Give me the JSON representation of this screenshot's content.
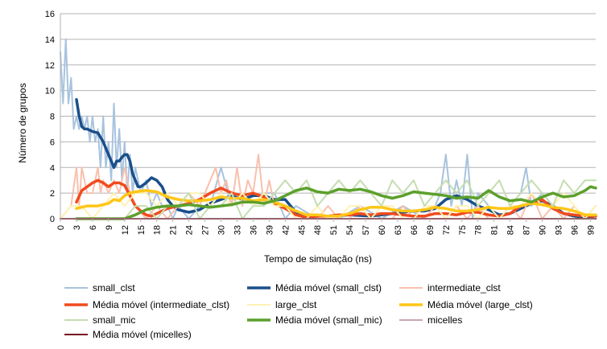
{
  "chart_data": {
    "type": "line",
    "xlabel": "Tempo de simulação (ns)",
    "ylabel": "Número de grupos",
    "xlim": [
      0,
      100
    ],
    "ylim": [
      0,
      16
    ],
    "yticks": [
      "0",
      "2",
      "4",
      "6",
      "8",
      "10",
      "12",
      "14",
      "16"
    ],
    "xticks": [
      "0",
      "3",
      "6",
      "9",
      "12",
      "15",
      "18",
      "21",
      "24",
      "27",
      "30",
      "33",
      "36",
      "39",
      "42",
      "45",
      "48",
      "51",
      "54",
      "57",
      "60",
      "63",
      "66",
      "69",
      "72",
      "75",
      "78",
      "81",
      "84",
      "87",
      "90",
      "93",
      "96",
      "99"
    ],
    "grid": "horizontal",
    "legend_position": "bottom",
    "series": [
      {
        "name": "small_clst",
        "color": "#a8c3de",
        "width": 2,
        "x": [
          0,
          0.5,
          1,
          1.5,
          2,
          2.5,
          3,
          3.5,
          4,
          4.5,
          5,
          5.5,
          6,
          6.5,
          7,
          7.5,
          8,
          8.5,
          9,
          9.5,
          10,
          10.5,
          11,
          11.5,
          12,
          12.5,
          13,
          13.5,
          14,
          15,
          16,
          17,
          18,
          19,
          20,
          21,
          22,
          24,
          26,
          28,
          30,
          32,
          34,
          36,
          38,
          40,
          42,
          44,
          48,
          52,
          56,
          60,
          64,
          68,
          70,
          71,
          72,
          73,
          74,
          75,
          76,
          77,
          78,
          80,
          82,
          84,
          86,
          87,
          88,
          90,
          92,
          94,
          96,
          98,
          100
        ],
        "y": [
          13,
          9,
          14,
          9,
          11,
          7,
          8,
          7,
          8,
          7,
          8,
          6,
          8,
          6,
          7,
          4,
          8,
          4,
          6,
          3,
          9,
          4,
          7,
          3,
          6,
          2,
          5,
          2,
          4,
          2,
          3,
          1,
          2,
          1,
          1,
          0,
          1,
          0,
          1,
          1,
          4,
          1,
          2,
          1,
          2,
          2,
          0,
          1,
          0,
          0,
          1,
          0,
          1,
          0,
          1,
          2,
          5,
          1,
          3,
          1,
          5,
          0,
          2,
          1,
          0,
          1,
          2,
          4,
          1,
          2,
          1,
          0,
          0,
          0,
          1
        ]
      },
      {
        "name": "Média móvel (small_clst)",
        "color": "#1a4f8a",
        "width": 3.5,
        "x": [
          3,
          3.5,
          4,
          4.5,
          5,
          6,
          7,
          8,
          9,
          9.5,
          10,
          10.5,
          11,
          11.5,
          12,
          12.5,
          13,
          13.5,
          14,
          14.5,
          15,
          16,
          17,
          18,
          19,
          20,
          21,
          22,
          24,
          26,
          28,
          30,
          32,
          34,
          36,
          38,
          40,
          42,
          44,
          46,
          50,
          54,
          58,
          62,
          66,
          68,
          70,
          72,
          74,
          76,
          78,
          80,
          82,
          84,
          86,
          88,
          90,
          92,
          94,
          96,
          98,
          100
        ],
        "y": [
          9.3,
          8,
          7.2,
          7,
          7,
          6.8,
          6.7,
          6,
          5,
          4.5,
          4,
          4.5,
          4.5,
          4.8,
          5,
          5,
          4.5,
          3.5,
          3,
          2.5,
          2.5,
          2.8,
          3.2,
          3,
          2.5,
          1.5,
          1,
          0.7,
          0.5,
          0.7,
          1.2,
          1.5,
          1.8,
          1.5,
          1.8,
          1.8,
          1.5,
          1.5,
          0.5,
          0.2,
          0.2,
          0.3,
          0.2,
          0.4,
          0.6,
          0.6,
          0.8,
          1.5,
          1.8,
          1.5,
          1,
          0.7,
          0.3,
          0.4,
          0.8,
          1.2,
          1.4,
          1,
          0.4,
          0.2,
          0.1,
          0.2
        ]
      },
      {
        "name": "intermediate_clst",
        "color": "#f9c0ad",
        "width": 2,
        "x": [
          0,
          2,
          3,
          3.5,
          4,
          5,
          6,
          7,
          7.5,
          8,
          9,
          10,
          11,
          12,
          13,
          14,
          16,
          18,
          20,
          22,
          24,
          26,
          28,
          29,
          30,
          31,
          32,
          33,
          34,
          35,
          36,
          37,
          38,
          39,
          40,
          42,
          44,
          46,
          48,
          50,
          52,
          54,
          56,
          58,
          60,
          62,
          64,
          66,
          68,
          70,
          72,
          74,
          76,
          78,
          80,
          82,
          84,
          86,
          88,
          90,
          92,
          94,
          96,
          98,
          100
        ],
        "y": [
          0,
          1,
          4,
          1,
          4,
          2,
          2,
          4,
          2,
          3,
          2,
          3,
          2,
          4,
          2,
          1,
          0,
          1,
          0,
          1,
          2,
          1,
          3,
          4,
          2,
          3,
          1,
          4,
          1,
          3,
          2,
          5,
          1,
          3,
          1,
          1,
          0,
          0,
          0,
          1,
          0,
          0,
          1,
          0,
          0,
          0,
          1,
          0,
          0,
          1,
          0,
          1,
          0,
          1,
          0,
          0,
          1,
          0,
          2,
          0,
          1,
          0,
          1,
          0,
          0
        ]
      },
      {
        "name": "Média móvel (intermediate_clst)",
        "color": "#f04b1e",
        "width": 3.5,
        "x": [
          3,
          4,
          5,
          6,
          7,
          8,
          9,
          10,
          11,
          12,
          13,
          14,
          15,
          16,
          17,
          18,
          20,
          22,
          24,
          26,
          28,
          30,
          32,
          34,
          36,
          38,
          40,
          42,
          44,
          46,
          48,
          50,
          52,
          54,
          56,
          58,
          60,
          62,
          64,
          66,
          68,
          70,
          72,
          74,
          76,
          78,
          80,
          82,
          84,
          86,
          88,
          90,
          92,
          94,
          96,
          98,
          100
        ],
        "y": [
          1.3,
          2.2,
          2.5,
          2.8,
          3,
          2.8,
          2.5,
          2.8,
          2.8,
          2.6,
          1.8,
          1,
          0.6,
          0.3,
          0.2,
          0.4,
          0.8,
          1,
          1.2,
          1.5,
          2,
          2.4,
          2,
          1.8,
          2,
          1.7,
          1.2,
          0.8,
          0.3,
          0.1,
          0.2,
          0.2,
          0.3,
          0.3,
          0.4,
          0.3,
          0.4,
          0.4,
          0.3,
          0.2,
          0.2,
          0.4,
          0.4,
          0.3,
          0.5,
          0.5,
          0.3,
          0.2,
          0.4,
          1,
          1.2,
          1.5,
          0.8,
          0.4,
          0.3,
          0.2,
          0.2
        ]
      },
      {
        "name": "large_clst",
        "color": "#fff2b3",
        "width": 2,
        "x": [
          0,
          2,
          4,
          6,
          8,
          10,
          12,
          14,
          16,
          18,
          20,
          22,
          24,
          26,
          28,
          30,
          32,
          34,
          36,
          38,
          40,
          42,
          44,
          46,
          48,
          50,
          52,
          54,
          56,
          58,
          60,
          62,
          64,
          66,
          68,
          70,
          72,
          74,
          76,
          78,
          80,
          82,
          84,
          86,
          88,
          90,
          92,
          94,
          96,
          98,
          100
        ],
        "y": [
          0,
          1,
          1,
          0,
          1,
          2,
          1,
          2,
          2,
          1,
          2,
          1,
          2,
          2,
          1,
          2,
          1,
          2,
          1,
          2,
          1,
          1,
          0,
          0,
          1,
          0,
          0,
          1,
          1,
          0,
          1,
          1,
          0,
          0,
          1,
          1,
          0,
          1,
          1,
          0,
          1,
          0,
          1,
          1,
          2,
          1,
          1,
          2,
          1,
          0,
          1
        ]
      },
      {
        "name": "Média móvel (large_clst)",
        "color": "#ffc617",
        "width": 3.5,
        "x": [
          3,
          4,
          5,
          6,
          7,
          8,
          9,
          10,
          11,
          12,
          13,
          14,
          16,
          18,
          20,
          22,
          24,
          26,
          28,
          30,
          32,
          34,
          36,
          38,
          40,
          42,
          44,
          46,
          48,
          50,
          52,
          54,
          56,
          58,
          60,
          62,
          64,
          66,
          68,
          70,
          72,
          74,
          76,
          78,
          80,
          82,
          84,
          86,
          88,
          90,
          92,
          94,
          96,
          98,
          100
        ],
        "y": [
          0.8,
          0.9,
          1,
          1,
          1,
          1.1,
          1.2,
          1.5,
          1.4,
          1.8,
          2,
          2.1,
          2.2,
          2.1,
          1.7,
          1.5,
          1.4,
          1.4,
          1.5,
          1.7,
          1.6,
          1.6,
          1.4,
          1.5,
          1.3,
          1,
          0.6,
          0.3,
          0.3,
          0.2,
          0.2,
          0.4,
          0.7,
          0.9,
          0.9,
          0.7,
          0.6,
          0.6,
          0.7,
          0.9,
          0.8,
          0.6,
          0.6,
          0.7,
          0.9,
          0.8,
          0.8,
          1,
          1.2,
          1.1,
          0.9,
          0.8,
          0.6,
          0.3,
          0.3
        ]
      },
      {
        "name": "small_mic",
        "color": "#c5ddb0",
        "width": 2,
        "x": [
          0,
          12,
          14,
          16,
          18,
          20,
          22,
          24,
          26,
          28,
          30,
          32,
          34,
          36,
          38,
          40,
          42,
          44,
          46,
          48,
          50,
          52,
          54,
          56,
          58,
          60,
          62,
          64,
          66,
          68,
          70,
          72,
          74,
          76,
          78,
          80,
          82,
          84,
          86,
          88,
          90,
          92,
          94,
          96,
          98,
          100
        ],
        "y": [
          0,
          0,
          1,
          1,
          0,
          1,
          1,
          2,
          0,
          1,
          1,
          2,
          0,
          1,
          1,
          2,
          3,
          2,
          3,
          1,
          2,
          3,
          2,
          3,
          2,
          1,
          3,
          2,
          3,
          1,
          2,
          3,
          2,
          3,
          1,
          2,
          3,
          1,
          2,
          3,
          2,
          1,
          3,
          2,
          3,
          3
        ]
      },
      {
        "name": "Média móvel (small_mic)",
        "color": "#5ca02c",
        "width": 3.5,
        "x": [
          3,
          6,
          9,
          12,
          14,
          16,
          18,
          20,
          22,
          24,
          26,
          28,
          30,
          32,
          34,
          36,
          38,
          40,
          42,
          44,
          46,
          48,
          50,
          52,
          54,
          56,
          58,
          60,
          62,
          64,
          66,
          68,
          70,
          72,
          74,
          76,
          78,
          80,
          82,
          84,
          86,
          88,
          90,
          92,
          94,
          96,
          98,
          99,
          100
        ],
        "y": [
          0,
          0,
          0,
          0,
          0.3,
          0.7,
          0.9,
          1,
          1,
          1.1,
          1,
          0.9,
          1,
          1.1,
          1.3,
          1.3,
          1.2,
          1.4,
          1.8,
          2.2,
          2.4,
          2.1,
          2,
          2.3,
          2.2,
          2.3,
          2.1,
          1.8,
          1.6,
          1.8,
          2.1,
          2,
          1.9,
          1.8,
          1.6,
          1.7,
          1.6,
          2.2,
          1.7,
          1.4,
          1.5,
          1.3,
          1.7,
          2,
          1.7,
          1.8,
          2.2,
          2.5,
          2.4
        ]
      },
      {
        "name": "micelles",
        "color": "#c9a6b6",
        "width": 2,
        "x": [
          0,
          100
        ],
        "y": [
          0,
          0
        ]
      },
      {
        "name": "Média móvel (micelles)",
        "color": "#7a1020",
        "width": 2,
        "x": [
          0,
          100
        ],
        "y": [
          0,
          0
        ]
      }
    ]
  }
}
